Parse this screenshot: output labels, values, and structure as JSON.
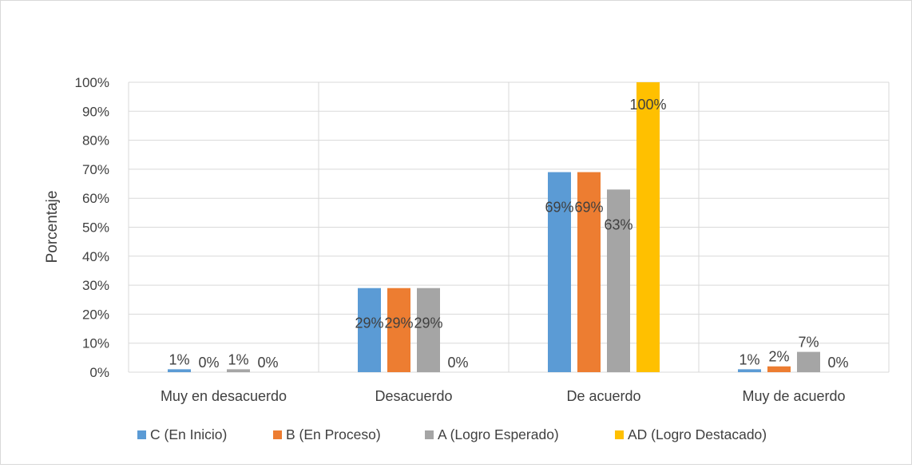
{
  "chart_data": {
    "type": "bar",
    "title": "",
    "xlabel": "",
    "ylabel": "Porcentaje",
    "ylim": [
      0,
      100
    ],
    "y_ticks": [
      "0%",
      "10%",
      "20%",
      "30%",
      "40%",
      "50%",
      "60%",
      "70%",
      "80%",
      "90%",
      "100%"
    ],
    "categories": [
      "Muy en desacuerdo",
      "Desacuerdo",
      "De acuerdo",
      "Muy de acuerdo"
    ],
    "series": [
      {
        "name": "C (En Inicio)",
        "color": "#5b9bd5",
        "values": [
          1,
          29,
          69,
          1
        ],
        "labels": [
          "1%",
          "29%",
          "69%",
          "1%"
        ]
      },
      {
        "name": "B (En Proceso)",
        "color": "#ed7d31",
        "values": [
          0,
          29,
          69,
          2
        ],
        "labels": [
          "0%",
          "29%",
          "69%",
          "2%"
        ]
      },
      {
        "name": "A (Logro Esperado)",
        "color": "#a5a5a5",
        "values": [
          1,
          29,
          63,
          7
        ],
        "labels": [
          "1%",
          "29%",
          "63%",
          "7%"
        ]
      },
      {
        "name": "AD (Logro Destacado)",
        "color": "#ffc000",
        "values": [
          0,
          0,
          100,
          0
        ],
        "labels": [
          "0%",
          "0%",
          "100%",
          "0%"
        ]
      }
    ],
    "grid": true,
    "legend_position": "bottom"
  }
}
